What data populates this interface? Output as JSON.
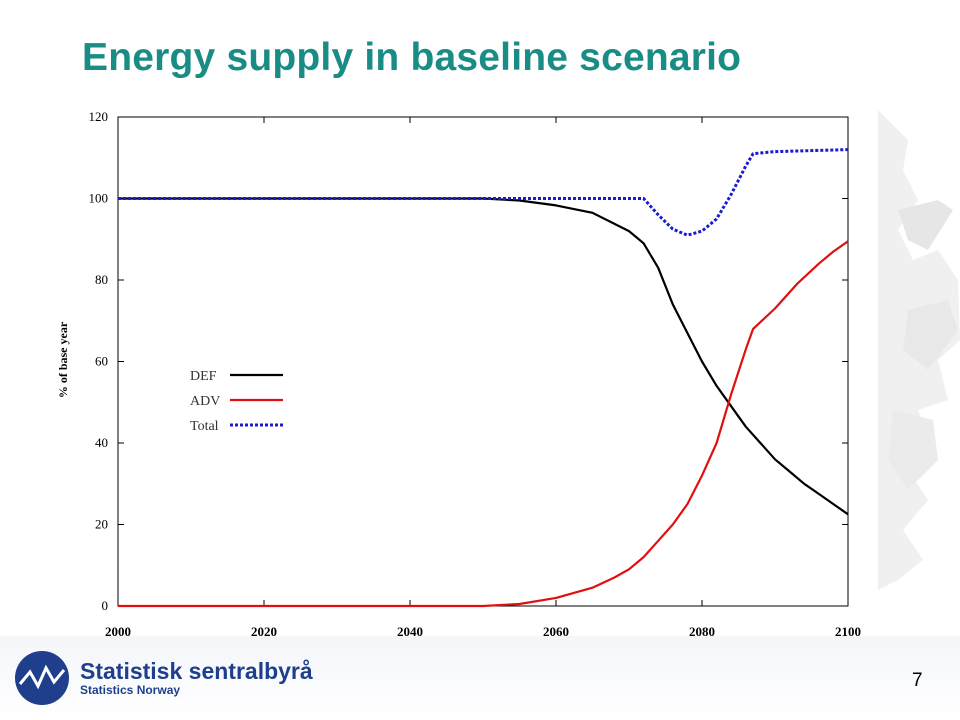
{
  "slide": {
    "title": "Energy supply in baseline scenario",
    "title_color": "#1a8c86",
    "page_number": "7"
  },
  "logo": {
    "name": "Statistisk sentralbyrå",
    "subtitle": "Statistics Norway",
    "color": "#1f3f8c"
  },
  "chart_data": {
    "type": "line",
    "title": "",
    "xlabel": "",
    "ylabel": "% of base year",
    "xlim": [
      2000,
      2100
    ],
    "ylim": [
      0,
      120
    ],
    "x_ticks": [
      2000,
      2020,
      2040,
      2060,
      2080,
      2100
    ],
    "y_ticks": [
      0,
      20,
      40,
      60,
      80,
      100,
      120
    ],
    "grid": false,
    "legend_position": "center-left",
    "series": [
      {
        "name": "DEF",
        "color": "#000000",
        "style": "solid",
        "points": [
          [
            2000,
            100
          ],
          [
            2050,
            100
          ],
          [
            2055,
            99.5
          ],
          [
            2060,
            98.3
          ],
          [
            2065,
            96.5
          ],
          [
            2070,
            92
          ],
          [
            2072,
            89
          ],
          [
            2074,
            83
          ],
          [
            2076,
            74
          ],
          [
            2078,
            67
          ],
          [
            2080,
            60
          ],
          [
            2082,
            54
          ],
          [
            2084,
            49
          ],
          [
            2086,
            44
          ],
          [
            2088,
            40
          ],
          [
            2090,
            36
          ],
          [
            2092,
            33
          ],
          [
            2094,
            30
          ],
          [
            2096,
            27.5
          ],
          [
            2098,
            25
          ],
          [
            2100,
            22.5
          ]
        ]
      },
      {
        "name": "ADV",
        "color": "#e01010",
        "style": "solid",
        "points": [
          [
            2000,
            0
          ],
          [
            2050,
            0
          ],
          [
            2055,
            0.5
          ],
          [
            2060,
            2
          ],
          [
            2065,
            4.5
          ],
          [
            2068,
            7
          ],
          [
            2070,
            9
          ],
          [
            2072,
            12
          ],
          [
            2074,
            16
          ],
          [
            2076,
            20
          ],
          [
            2078,
            25
          ],
          [
            2080,
            32
          ],
          [
            2082,
            40
          ],
          [
            2084,
            52
          ],
          [
            2086,
            63
          ],
          [
            2087,
            68
          ],
          [
            2090,
            73
          ],
          [
            2093,
            79
          ],
          [
            2096,
            84
          ],
          [
            2098,
            87
          ],
          [
            2100,
            89.5
          ]
        ]
      },
      {
        "name": "Total",
        "color": "#1a1ad0",
        "style": "dotted",
        "points": [
          [
            2000,
            100
          ],
          [
            2072,
            100
          ],
          [
            2074,
            96
          ],
          [
            2076,
            92.5
          ],
          [
            2078,
            91
          ],
          [
            2080,
            92
          ],
          [
            2082,
            95
          ],
          [
            2084,
            101
          ],
          [
            2086,
            108
          ],
          [
            2087,
            111
          ],
          [
            2090,
            111.5
          ],
          [
            2094,
            111.7
          ],
          [
            2100,
            112
          ]
        ]
      }
    ]
  }
}
